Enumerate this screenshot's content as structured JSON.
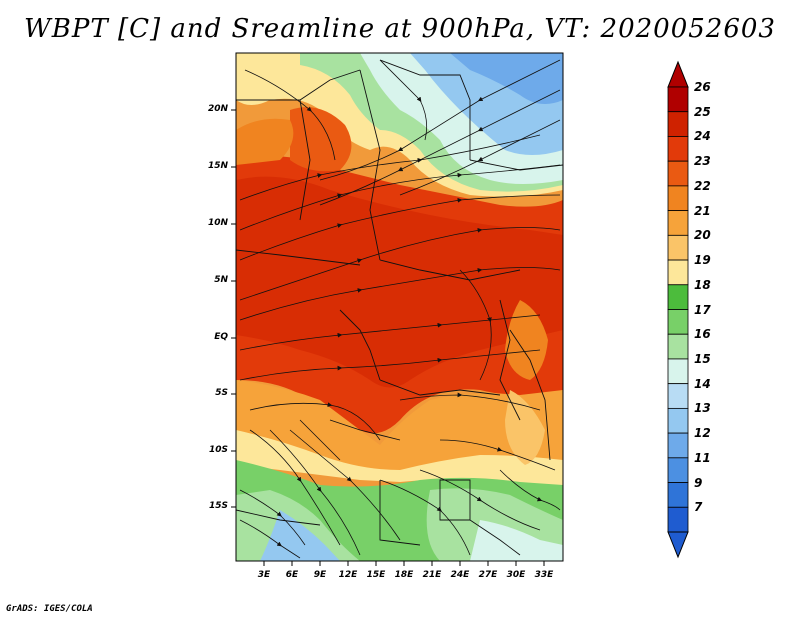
{
  "title": "WBPT [C] and Sreamline at 900hPa, VT: 2020052603",
  "credit": "GrADS: IGES/COLA",
  "map": {
    "projection": "latlon",
    "variable": "Wet-bulb potential temperature",
    "units": "C",
    "level": "900hPa",
    "overlay": "streamlines",
    "lat_range": [
      -20,
      25
    ],
    "lon_range": [
      0,
      35
    ],
    "lat_labels": [
      "20N",
      "15N",
      "10N",
      "5N",
      "EQ",
      "5S",
      "10S",
      "15S"
    ],
    "lon_labels": [
      "3E",
      "6E",
      "9E",
      "12E",
      "15E",
      "18E",
      "21E",
      "24E",
      "27E",
      "30E",
      "33E"
    ]
  },
  "colorbar": {
    "labels": [
      "26",
      "25",
      "24",
      "23",
      "22",
      "21",
      "20",
      "19",
      "18",
      "17",
      "16",
      "15",
      "14",
      "13",
      "12",
      "11",
      "9",
      "7"
    ],
    "colors": [
      "#b00000",
      "#cf2200",
      "#e23a0a",
      "#ea5a12",
      "#f08420",
      "#f6a33a",
      "#fac468",
      "#fde79a",
      "#4cbc3c",
      "#78d068",
      "#a8e2a0",
      "#d8f4ec",
      "#b8dcf4",
      "#94c8f0",
      "#6eaaea",
      "#4c90e2",
      "#2f74d8",
      "#1f5cd0"
    ]
  }
}
